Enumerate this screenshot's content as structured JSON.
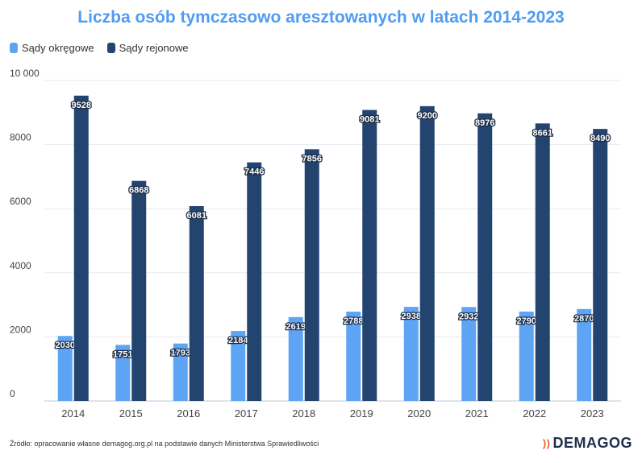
{
  "chart_data": {
    "type": "bar",
    "title": "Liczba osób tymczasowo aresztowanych w latach 2014-2023",
    "xlabel": "",
    "ylabel": "",
    "categories": [
      "2014",
      "2015",
      "2016",
      "2017",
      "2018",
      "2019",
      "2020",
      "2021",
      "2022",
      "2023"
    ],
    "series": [
      {
        "name": "Sądy okręgowe",
        "color": "#5ea4f5",
        "values": [
          2030,
          1751,
          1793,
          2184,
          2619,
          2788,
          2938,
          2932,
          2790,
          2870
        ]
      },
      {
        "name": "Sądy rejonowe",
        "color": "#22446f",
        "values": [
          9528,
          6868,
          6081,
          7446,
          7856,
          9081,
          9200,
          8976,
          8661,
          8490
        ]
      }
    ],
    "ylim": [
      0,
      10000
    ],
    "yticks": [
      0,
      2000,
      4000,
      6000,
      8000,
      10000
    ],
    "ytick_labels": [
      "0",
      "2000",
      "4000",
      "6000",
      "8000",
      "10 000"
    ],
    "grid": true,
    "legend_position": "top-left"
  },
  "source_note": "Źródło: opracowanie własne demagog.org.pl na podstawie danych Ministerstwa Sprawiedliwości",
  "brand": {
    "mark": "))",
    "name": "DEMAGOG"
  }
}
